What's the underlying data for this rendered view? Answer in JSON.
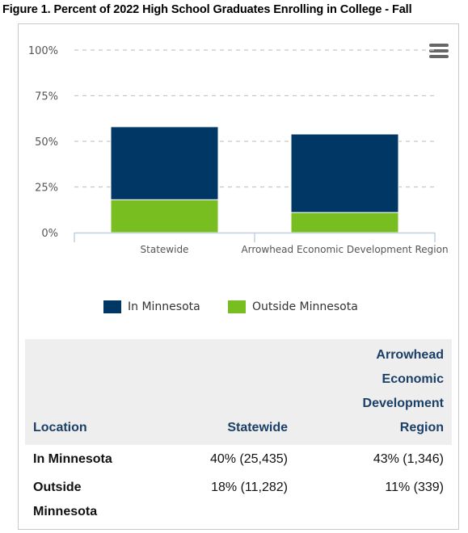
{
  "figure_title": "Figure 1. Percent of 2022 High School Graduates Enrolling in College - Fall",
  "colors": {
    "in_minnesota": "#003764",
    "outside_minnesota": "#78be21",
    "header_text": "#1b3f66"
  },
  "menu": {
    "icon": "hamburger-menu-icon"
  },
  "chart_data": {
    "type": "bar",
    "stacked": true,
    "categories": [
      "Statewide",
      "Arrowhead Economic Development Region"
    ],
    "series": [
      {
        "name": "In Minnesota",
        "values": [
          40,
          43
        ],
        "color": "#003764"
      },
      {
        "name": "Outside Minnesota",
        "values": [
          18,
          11
        ],
        "color": "#78be21"
      }
    ],
    "ylim": [
      0,
      100
    ],
    "yticks": [
      "0%",
      "25%",
      "50%",
      "75%",
      "100%"
    ],
    "ytick_values": [
      0,
      25,
      50,
      75,
      100
    ],
    "grid": true,
    "legend_position": "bottom"
  },
  "table": {
    "headers": {
      "location": "Location",
      "statewide": "Statewide",
      "arrowhead": [
        "Arrowhead",
        "Economic",
        "Development",
        "Region"
      ]
    },
    "rows": [
      {
        "location": [
          "In Minnesota"
        ],
        "statewide": "40% (25,435)",
        "arrowhead": "43% (1,346)"
      },
      {
        "location": [
          "Outside",
          "Minnesota"
        ],
        "statewide": "18% (11,282)",
        "arrowhead": "11% (339)"
      }
    ]
  }
}
